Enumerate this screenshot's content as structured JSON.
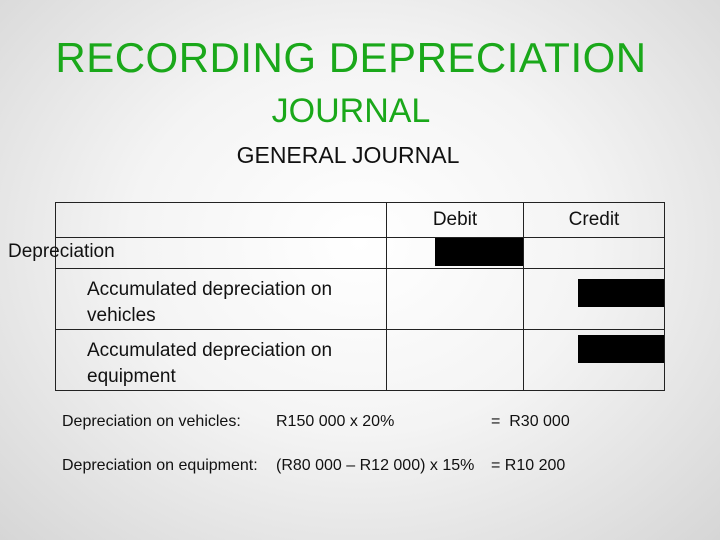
{
  "title_line1": "RECORDING DEPRECIATION",
  "title_line2": "JOURNAL",
  "subtitle": "GENERAL JOURNAL",
  "journal": {
    "header": {
      "description": "",
      "debit": "Debit",
      "credit": "Credit"
    },
    "rows": [
      {
        "description": "Depreciation"
      },
      {
        "description": "Accumulated depreciation on vehicles"
      },
      {
        "description": "Accumulated depreciation on equipment"
      }
    ]
  },
  "calculations": [
    {
      "label": "Depreciation on vehicles:",
      "formula": "R150 000 x 20%",
      "result": "=  R30 000"
    },
    {
      "label": "Depreciation on equipment:",
      "formula": "(R80 000 – R12 000) x 15%",
      "result": "= R10 200"
    }
  ],
  "colors": {
    "title": "#1aa81a",
    "redaction": "#000000"
  }
}
